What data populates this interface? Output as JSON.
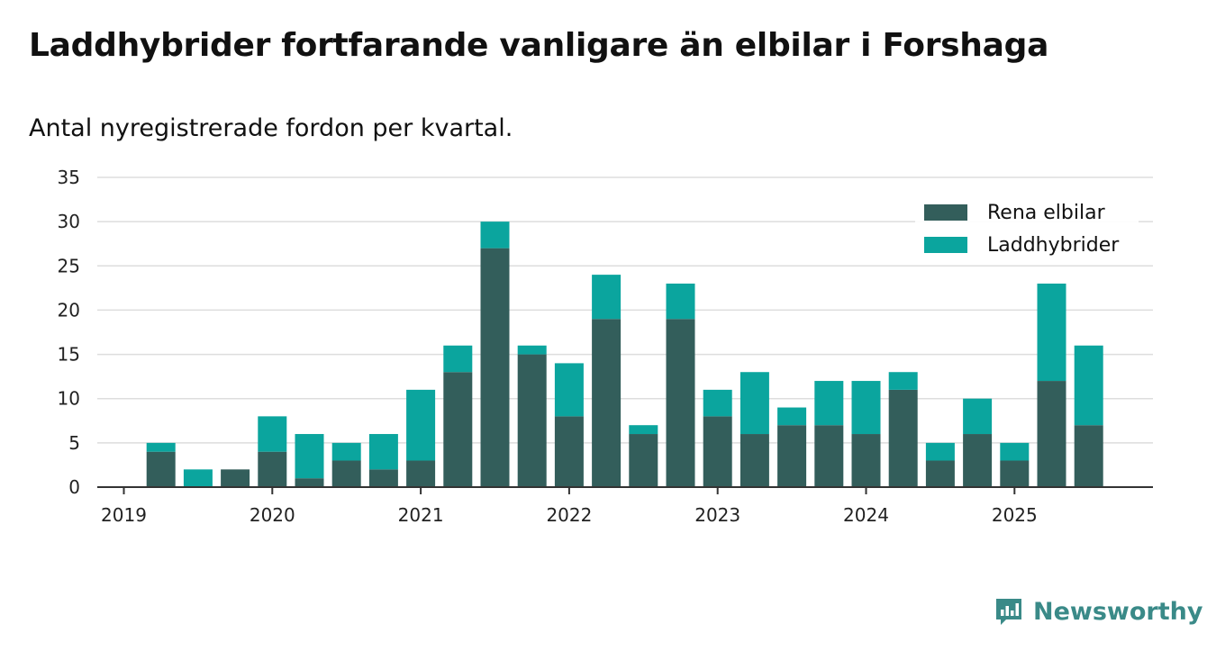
{
  "header": {
    "title": "Laddhybrider fortfarande vanligare än elbilar i Forshaga",
    "subtitle": "Antal nyregistrerade fordon per kvartal."
  },
  "brand": {
    "name": "Newsworthy"
  },
  "colors": {
    "elbilar": "#335e5b",
    "laddhybrider": "#0ba59e",
    "grid": "#dddddd",
    "axis": "#333333",
    "brand": "#3a8a88"
  },
  "chart_data": {
    "type": "bar",
    "stacked": true,
    "title": "Laddhybrider fortfarande vanligare än elbilar i Forshaga",
    "subtitle": "Antal nyregistrerade fordon per kvartal.",
    "xlabel": "",
    "ylabel": "",
    "ylim": [
      0,
      35
    ],
    "yticks": [
      "0",
      "5",
      "10",
      "15",
      "20",
      "25",
      "30",
      "35"
    ],
    "xticks": [
      {
        "label": "2019",
        "index": 0
      },
      {
        "label": "2020",
        "index": 4
      },
      {
        "label": "2021",
        "index": 8
      },
      {
        "label": "2022",
        "index": 12
      },
      {
        "label": "2023",
        "index": 16
      },
      {
        "label": "2024",
        "index": 20
      },
      {
        "label": "2025",
        "index": 24
      }
    ],
    "categories": [
      "2019-Q1",
      "2019-Q2",
      "2019-Q3",
      "2019-Q4",
      "2020-Q1",
      "2020-Q2",
      "2020-Q3",
      "2020-Q4",
      "2021-Q1",
      "2021-Q2",
      "2021-Q3",
      "2021-Q4",
      "2022-Q1",
      "2022-Q2",
      "2022-Q3",
      "2022-Q4",
      "2023-Q1",
      "2023-Q2",
      "2023-Q3",
      "2023-Q4",
      "2024-Q1",
      "2024-Q2",
      "2024-Q3",
      "2024-Q4",
      "2025-Q1",
      "2025-Q2",
      "2025-Q3"
    ],
    "series": [
      {
        "name": "Rena elbilar",
        "values": [
          0,
          4,
          0,
          2,
          4,
          1,
          3,
          2,
          3,
          13,
          27,
          15,
          8,
          19,
          6,
          19,
          8,
          6,
          7,
          7,
          6,
          11,
          3,
          6,
          3,
          12,
          7
        ]
      },
      {
        "name": "Laddhybrider",
        "values": [
          0,
          1,
          2,
          0,
          4,
          5,
          2,
          4,
          8,
          3,
          3,
          1,
          6,
          5,
          1,
          4,
          3,
          7,
          2,
          5,
          6,
          2,
          2,
          4,
          2,
          11,
          9
        ]
      }
    ],
    "legend": {
      "placement": "top-right",
      "entries": [
        "Rena elbilar",
        "Laddhybrider"
      ]
    },
    "grid": true
  }
}
